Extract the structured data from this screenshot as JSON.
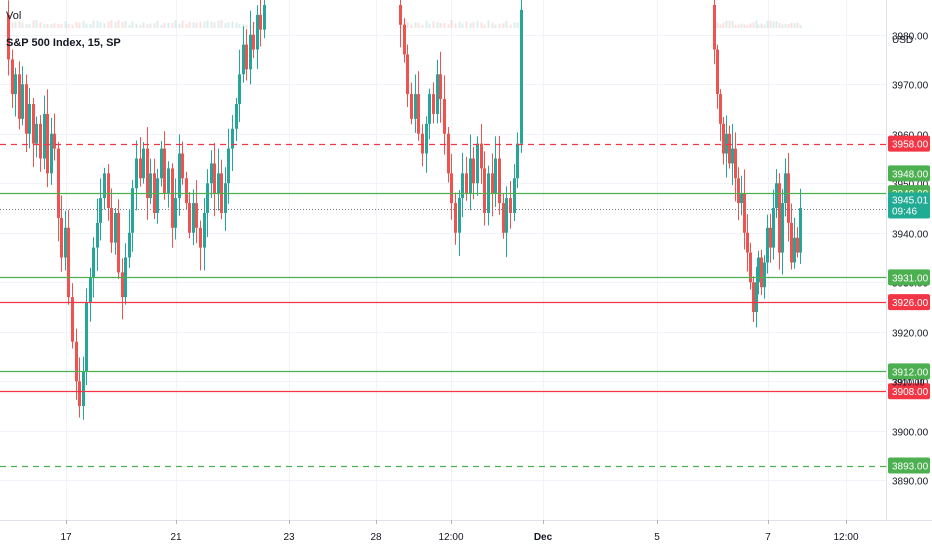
{
  "header": {
    "vol_label": "Vol",
    "instrument_label": "S&P 500 Index, 15, SP",
    "currency_label": "USD"
  },
  "colors": {
    "up": "#26a69a",
    "down": "#ef5350",
    "support_line": "#4caf50",
    "resistance_line": "#f23645",
    "current_price_badge": "#22ab94",
    "grid": "#f0f3fa",
    "axis_text": "#131722"
  },
  "chart_data": {
    "type": "candlestick",
    "x_tick_labels": [
      "17",
      "21",
      "23",
      "28",
      "12:00",
      "Dec",
      "5",
      "7",
      "12:00"
    ],
    "y_range": [
      3882,
      3987
    ],
    "y_ticks": [
      3890,
      3900,
      3910,
      3920,
      3930,
      3940,
      3950,
      3960,
      3970,
      3980
    ],
    "y_tick_labels": [
      "3890.00",
      "3900.00",
      "3910.00",
      "3920.00",
      "3930.00",
      "3940.00",
      "3950.00",
      "3960.00",
      "3970.00",
      "3980.00"
    ],
    "current_price": {
      "value": 3945.01,
      "label": "3945.01",
      "countdown": "09:46"
    },
    "price_lines": [
      {
        "value": 3958,
        "label": "3958.00",
        "color": "resistance",
        "style": "dashed"
      },
      {
        "value": 3948,
        "label": "3948.00",
        "color": "support",
        "style": "solid"
      },
      {
        "value": 3931,
        "label": "3931.00",
        "color": "support",
        "style": "solid"
      },
      {
        "value": 3926,
        "label": "3926.00",
        "color": "resistance",
        "style": "solid"
      },
      {
        "value": 3912,
        "label": "3912.00",
        "color": "support",
        "style": "solid"
      },
      {
        "value": 3908,
        "label": "3908.00",
        "color": "resistance",
        "style": "solid"
      },
      {
        "value": 3893,
        "label": "3893.00",
        "color": "support",
        "style": "dashed"
      }
    ],
    "extra_badges": [
      {
        "value": 3948,
        "label": "3948.00",
        "color": "support"
      }
    ],
    "partial_label": "3910.00",
    "segments": [
      {
        "start": 3984,
        "closes": [
          3975,
          3968,
          3972,
          3963,
          3970,
          3960,
          3966,
          3958,
          3962,
          3955,
          3964,
          3952,
          3960,
          3957,
          3943,
          3935,
          3941,
          3927,
          3918,
          3910,
          3905,
          3912,
          3926,
          3931,
          3937,
          3942,
          3947,
          3952,
          3945,
          3938,
          3944,
          3932,
          3927,
          3935,
          3940,
          3949,
          3955,
          3951,
          3957,
          3947,
          3952,
          3944,
          3951,
          3957,
          3948,
          3953,
          3941,
          3947,
          3956,
          3951,
          3946,
          3940,
          3946,
          3941,
          3937,
          3944,
          3950,
          3954,
          3948,
          3952,
          3944,
          3950,
          3957,
          3961,
          3966,
          3972,
          3978,
          3973,
          3980,
          3977,
          3984,
          3981,
          3986
        ]
      },
      {
        "start": 3986,
        "closes": [
          3982,
          3976,
          3968,
          3963,
          3968,
          3960,
          3956,
          3962,
          3968,
          3964,
          3972,
          3967,
          3960,
          3952,
          3946,
          3940,
          3947,
          3952,
          3948,
          3955,
          3950,
          3958,
          3953,
          3944,
          3952,
          3948,
          3955,
          3946,
          3940,
          3947,
          3944,
          3951,
          3958,
          3985
        ]
      },
      {
        "start": 3986,
        "closes": [
          3977,
          3968,
          3962,
          3956,
          3960,
          3954,
          3957,
          3951,
          3946,
          3948,
          3940,
          3936,
          3930,
          3924,
          3930,
          3935,
          3929,
          3934,
          3941,
          3937,
          3945,
          3950,
          3936,
          3946,
          3952,
          3942,
          3934,
          3939,
          3936,
          3945
        ]
      }
    ],
    "segment_x_ranges": [
      [
        8,
        264
      ],
      [
        400,
        521
      ],
      [
        714,
        800
      ]
    ]
  }
}
